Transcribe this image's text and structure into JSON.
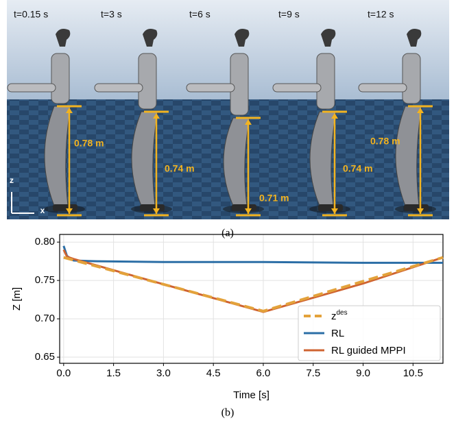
{
  "figure_a": {
    "frames": [
      {
        "time": "t=0.15 s",
        "height": "0.78 m"
      },
      {
        "time": "t=3 s",
        "height": "0.74 m"
      },
      {
        "time": "t=6 s",
        "height": "0.71 m"
      },
      {
        "time": "t=9 s",
        "height": "0.74 m"
      },
      {
        "time": "t=12 s",
        "height": "0.78 m"
      }
    ],
    "axis_z": "z",
    "axis_x": "x",
    "caption": "(a)"
  },
  "chart_data": {
    "type": "line",
    "xlabel": "Time [s]",
    "ylabel": "Z [m]",
    "xlim": [
      -0.12,
      11.4
    ],
    "ylim": [
      0.642,
      0.81
    ],
    "xticks": [
      {
        "value": 0,
        "label": "0.0"
      },
      1.5,
      {
        "value": 3,
        "label": "3.0"
      },
      4.5,
      {
        "value": 6,
        "label": "6.0"
      },
      7.5,
      {
        "value": 9,
        "label": "9.0"
      },
      10.5
    ],
    "yticks": [
      0.65,
      {
        "value": 0.7,
        "label": "0.70"
      },
      0.75,
      {
        "value": 0.8,
        "label": "0.80"
      }
    ],
    "grid": true,
    "legend": "lower right",
    "series": [
      {
        "name": "z",
        "superscript": "des",
        "color": "#e3a23b",
        "dashed": true,
        "x": [
          0,
          6,
          11.4
        ],
        "values": [
          0.78,
          0.71,
          0.78
        ]
      },
      {
        "name": "RL",
        "color": "#2b6ea6",
        "x": [
          0,
          0.1,
          0.3,
          1,
          3,
          6,
          9,
          11.4
        ],
        "values": [
          0.795,
          0.782,
          0.776,
          0.775,
          0.774,
          0.774,
          0.773,
          0.773
        ]
      },
      {
        "name": "RL guided MPPI",
        "color": "#cf6331",
        "x": [
          0,
          0.1,
          0.3,
          3,
          6,
          9,
          11.4
        ],
        "values": [
          0.79,
          0.781,
          0.778,
          0.745,
          0.709,
          0.746,
          0.78
        ]
      }
    ]
  },
  "caption_b": "(b)"
}
